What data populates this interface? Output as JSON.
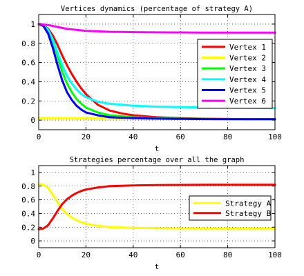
{
  "chart_data": [
    {
      "type": "line",
      "title": "Vertices dynamics (percentage of strategy A)",
      "xlabel": "t",
      "ylabel": "",
      "xlim": [
        0,
        100
      ],
      "ylim": [
        -0.1,
        1.1
      ],
      "xticks": [
        0,
        20,
        40,
        60,
        80,
        100
      ],
      "xtick_labels": [
        "0",
        "20",
        "40",
        "60",
        "80",
        "100"
      ],
      "yticks": [
        0,
        0.2,
        0.4,
        0.6,
        0.8,
        1
      ],
      "ytick_labels": [
        "0",
        "0.2",
        "0.4",
        "0.6",
        "0.8",
        "1"
      ],
      "grid": true,
      "legend_position": "right",
      "x": [
        0,
        2,
        4,
        6,
        8,
        10,
        12,
        14,
        16,
        18,
        20,
        25,
        30,
        35,
        40,
        45,
        50,
        55,
        60,
        70,
        80,
        90,
        100
      ],
      "series": [
        {
          "name": "Vertex 1",
          "color": "#ff0000",
          "values": [
            1.0,
            0.99,
            0.95,
            0.88,
            0.78,
            0.67,
            0.57,
            0.48,
            0.4,
            0.33,
            0.27,
            0.16,
            0.1,
            0.07,
            0.05,
            0.04,
            0.03,
            0.025,
            0.02,
            0.015,
            0.012,
            0.01,
            0.01
          ]
        },
        {
          "name": "Vertex 2",
          "color": "#ffff00",
          "values": [
            0.02,
            0.02,
            0.02,
            0.02,
            0.02,
            0.02,
            0.02,
            0.02,
            0.02,
            0.02,
            0.02,
            0.02,
            0.02,
            0.02,
            0.02,
            0.02,
            0.015,
            0.015,
            0.015,
            0.01,
            0.01,
            0.01,
            0.01
          ]
        },
        {
          "name": "Vertex 3",
          "color": "#00ff00",
          "values": [
            1.0,
            0.99,
            0.93,
            0.82,
            0.66,
            0.5,
            0.38,
            0.29,
            0.22,
            0.17,
            0.13,
            0.08,
            0.05,
            0.04,
            0.03,
            0.025,
            0.02,
            0.018,
            0.016,
            0.013,
            0.011,
            0.01,
            0.01
          ]
        },
        {
          "name": "Vertex 4",
          "color": "#00ffff",
          "values": [
            1.0,
            0.99,
            0.94,
            0.84,
            0.7,
            0.57,
            0.46,
            0.38,
            0.32,
            0.27,
            0.24,
            0.19,
            0.17,
            0.16,
            0.15,
            0.145,
            0.14,
            0.138,
            0.135,
            0.132,
            0.13,
            0.128,
            0.125
          ]
        },
        {
          "name": "Vertex 5",
          "color": "#0000ff",
          "values": [
            1.0,
            0.98,
            0.9,
            0.75,
            0.57,
            0.41,
            0.29,
            0.21,
            0.15,
            0.11,
            0.08,
            0.05,
            0.03,
            0.025,
            0.02,
            0.018,
            0.016,
            0.014,
            0.013,
            0.011,
            0.01,
            0.01,
            0.01
          ]
        },
        {
          "name": "Vertex 6",
          "color": "#ff00ff",
          "values": [
            1.0,
            0.995,
            0.99,
            0.98,
            0.97,
            0.96,
            0.95,
            0.945,
            0.94,
            0.935,
            0.93,
            0.925,
            0.92,
            0.918,
            0.916,
            0.915,
            0.914,
            0.913,
            0.913,
            0.912,
            0.912,
            0.912,
            0.912
          ]
        }
      ]
    },
    {
      "type": "line",
      "title": "Strategies percentage over all the graph",
      "xlabel": "t",
      "ylabel": "",
      "xlim": [
        0,
        100
      ],
      "ylim": [
        -0.1,
        1.1
      ],
      "xticks": [
        0,
        20,
        40,
        60,
        80,
        100
      ],
      "xtick_labels": [
        "0",
        "20",
        "40",
        "60",
        "80",
        "100"
      ],
      "yticks": [
        0,
        0.2,
        0.4,
        0.6,
        0.8,
        1
      ],
      "ytick_labels": [
        "0",
        "0.2",
        "0.4",
        "0.6",
        "0.8",
        "1"
      ],
      "grid": true,
      "legend_position": "right",
      "x": [
        0,
        2,
        4,
        6,
        8,
        10,
        12,
        14,
        16,
        18,
        20,
        25,
        30,
        35,
        40,
        45,
        50,
        60,
        70,
        80,
        90,
        100
      ],
      "series": [
        {
          "name": "Strategy A",
          "color": "#ffff00",
          "values": [
            0.83,
            0.82,
            0.77,
            0.67,
            0.56,
            0.46,
            0.39,
            0.34,
            0.3,
            0.27,
            0.25,
            0.22,
            0.2,
            0.195,
            0.19,
            0.187,
            0.185,
            0.182,
            0.18,
            0.18,
            0.18,
            0.18
          ]
        },
        {
          "name": "Strategy B",
          "color": "#ff0000",
          "values": [
            0.17,
            0.18,
            0.23,
            0.33,
            0.44,
            0.54,
            0.61,
            0.66,
            0.7,
            0.73,
            0.75,
            0.78,
            0.8,
            0.805,
            0.81,
            0.813,
            0.815,
            0.818,
            0.82,
            0.82,
            0.82,
            0.82
          ]
        }
      ]
    }
  ]
}
